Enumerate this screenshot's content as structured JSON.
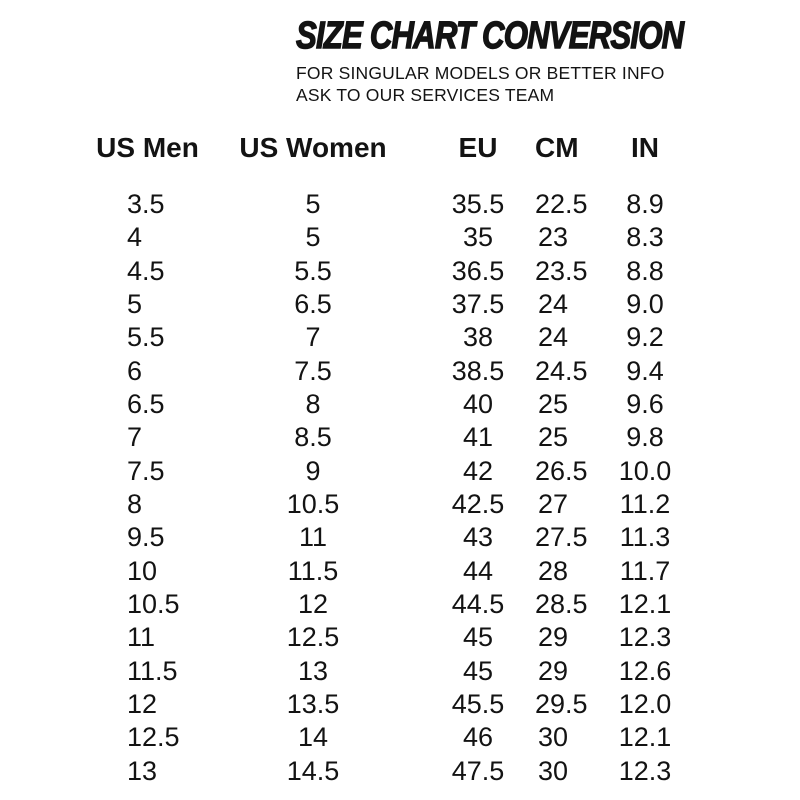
{
  "colors": {
    "background": "#ffffff",
    "text": "#131313"
  },
  "header": {
    "title": "SIZE CHART CONVERSION",
    "subtitle_line1": "FOR SINGULAR MODELS OR BETTER INFO",
    "subtitle_line2": "ASK TO OUR SERVICES TEAM"
  },
  "table": {
    "columns": [
      "US Men",
      "US Women",
      "EU",
      "CM",
      "IN"
    ],
    "column_keys": [
      "us-men",
      "us-women",
      "eu",
      "cm",
      "in"
    ],
    "rows": [
      [
        "3.5",
        "5",
        "35.5",
        "22.5",
        "8.9"
      ],
      [
        "4",
        "5",
        "35",
        "23",
        "8.3"
      ],
      [
        "4.5",
        "5.5",
        "36.5",
        "23.5",
        "8.8"
      ],
      [
        "5",
        "6.5",
        "37.5",
        "24",
        "9.0"
      ],
      [
        "5.5",
        "7",
        "38",
        "24",
        "9.2"
      ],
      [
        "6",
        "7.5",
        "38.5",
        "24.5",
        "9.4"
      ],
      [
        "6.5",
        "8",
        "40",
        "25",
        "9.6"
      ],
      [
        "7",
        "8.5",
        "41",
        "25",
        "9.8"
      ],
      [
        "7.5",
        "9",
        "42",
        "26.5",
        "10.0"
      ],
      [
        "8",
        "10.5",
        "42.5",
        "27",
        "11.2"
      ],
      [
        "9.5",
        "11",
        "43",
        "27.5",
        "11.3"
      ],
      [
        "10",
        "11.5",
        "44",
        "28",
        "11.7"
      ],
      [
        "10.5",
        "12",
        "44.5",
        "28.5",
        "12.1"
      ],
      [
        "11",
        "12.5",
        "45",
        "29",
        "12.3"
      ],
      [
        "11.5",
        "13",
        "45",
        "29",
        "12.6"
      ],
      [
        "12",
        "13.5",
        "45.5",
        "29.5",
        "12.0"
      ],
      [
        "12.5",
        "14",
        "46",
        "30",
        "12.1"
      ],
      [
        "13",
        "14.5",
        "47.5",
        "30",
        "12.3"
      ]
    ]
  }
}
